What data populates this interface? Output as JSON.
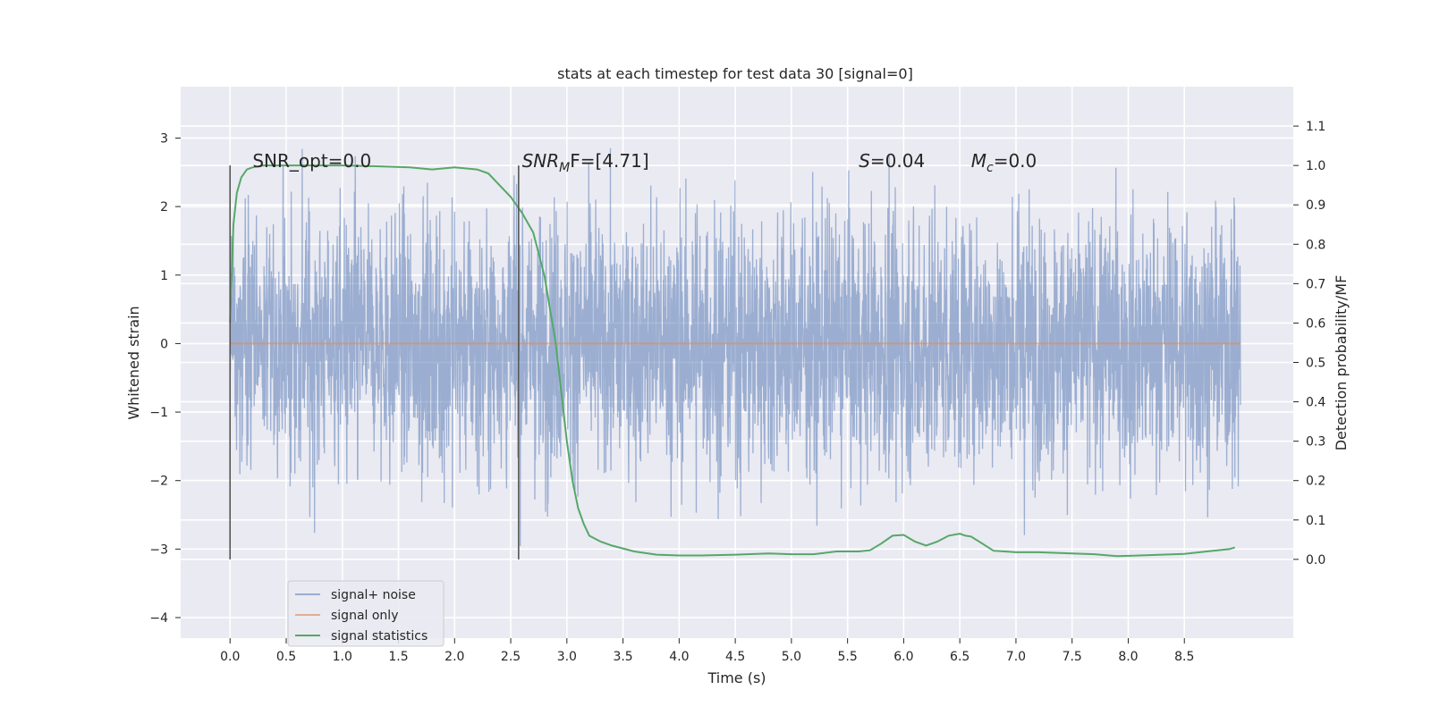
{
  "chart_data": {
    "type": "line",
    "title": "stats at each timestep for test data 30 [signal=0]",
    "xlabel": "Time (s)",
    "ylabel": "Whitened strain",
    "y2label": "Detection probability/MF",
    "xlim": [
      -0.44,
      9.47
    ],
    "ylim": [
      -4.3,
      3.75
    ],
    "y2lim": [
      -0.2,
      1.2
    ],
    "xticks": [
      0.0,
      0.5,
      1.0,
      1.5,
      2.0,
      2.5,
      3.0,
      3.5,
      4.0,
      4.5,
      5.0,
      5.5,
      6.0,
      6.5,
      7.0,
      7.5,
      8.0,
      8.5
    ],
    "xtick_labels": [
      "0.0",
      "0.5",
      "1.0",
      "1.5",
      "2.0",
      "2.5",
      "3.0",
      "3.5",
      "4.0",
      "4.5",
      "5.0",
      "5.5",
      "6.0",
      "6.5",
      "7.0",
      "7.5",
      "8.0",
      "8.5"
    ],
    "yticks": [
      -4,
      -3,
      -2,
      -1,
      0,
      1,
      2,
      3
    ],
    "ytick_labels": [
      "−4",
      "−3",
      "−2",
      "−1",
      "0",
      "1",
      "2",
      "3"
    ],
    "y2ticks": [
      0.0,
      0.1,
      0.2,
      0.3,
      0.4,
      0.5,
      0.6,
      0.7,
      0.8,
      0.9,
      1.0,
      1.1
    ],
    "y2tick_labels": [
      "0.0",
      "0.1",
      "0.2",
      "0.3",
      "0.4",
      "0.5",
      "0.6",
      "0.7",
      "0.8",
      "0.9",
      "1.0",
      "1.1"
    ],
    "grid": true,
    "legend_position": "lower-left",
    "annotations": [
      {
        "text": "SNR_opt=0.0",
        "x": 0.2
      },
      {
        "text": "SNR",
        "sub": "M",
        "suffix": "F=[4.71]",
        "x": 2.6
      },
      {
        "text": "S",
        "suffix": "=0.04",
        "x": 5.6
      },
      {
        "text": "M",
        "sub": "c",
        "suffix": "=0.0",
        "x": 6.6
      }
    ],
    "vlines": [
      0.0,
      2.57
    ],
    "vline_y2_range": [
      0.0,
      1.0
    ],
    "series": [
      {
        "name": "signal+ noise",
        "axis": "left",
        "color": "#4c72b0",
        "opacity": 0.5,
        "kind": "noise",
        "x_start": 0.0,
        "x_end": 9.0,
        "sigma": 0.95,
        "peak_max": 3.5,
        "peak_min": -4.0
      },
      {
        "name": "signal only",
        "axis": "left",
        "color": "#dd8452",
        "opacity": 0.6,
        "x": [
          0.0,
          9.0
        ],
        "y": [
          0.0,
          0.0
        ]
      },
      {
        "name": "signal statistics",
        "axis": "right",
        "color": "#55a868",
        "x": [
          0.0,
          0.03,
          0.06,
          0.1,
          0.15,
          0.2,
          0.3,
          0.5,
          0.8,
          1.0,
          1.3,
          1.6,
          1.8,
          2.0,
          2.2,
          2.3,
          2.4,
          2.5,
          2.6,
          2.7,
          2.8,
          2.9,
          3.0,
          3.05,
          3.1,
          3.15,
          3.2,
          3.3,
          3.4,
          3.6,
          3.8,
          4.0,
          4.2,
          4.5,
          4.8,
          5.0,
          5.2,
          5.4,
          5.6,
          5.7,
          5.8,
          5.9,
          6.0,
          6.1,
          6.2,
          6.3,
          6.4,
          6.5,
          6.55,
          6.6,
          6.7,
          6.8,
          6.9,
          7.0,
          7.2,
          7.5,
          7.7,
          7.9,
          8.1,
          8.3,
          8.5,
          8.7,
          8.9,
          8.95
        ],
        "y": [
          0.6,
          0.85,
          0.93,
          0.97,
          0.99,
          0.995,
          1.0,
          1.0,
          1.0,
          1.0,
          0.998,
          0.995,
          0.99,
          0.995,
          0.99,
          0.98,
          0.95,
          0.92,
          0.88,
          0.83,
          0.72,
          0.55,
          0.3,
          0.2,
          0.13,
          0.09,
          0.06,
          0.045,
          0.035,
          0.02,
          0.012,
          0.01,
          0.01,
          0.012,
          0.015,
          0.013,
          0.013,
          0.02,
          0.02,
          0.023,
          0.04,
          0.06,
          0.062,
          0.045,
          0.035,
          0.045,
          0.06,
          0.065,
          0.06,
          0.058,
          0.04,
          0.022,
          0.02,
          0.018,
          0.018,
          0.015,
          0.013,
          0.008,
          0.01,
          0.012,
          0.014,
          0.02,
          0.026,
          0.03
        ]
      }
    ]
  }
}
